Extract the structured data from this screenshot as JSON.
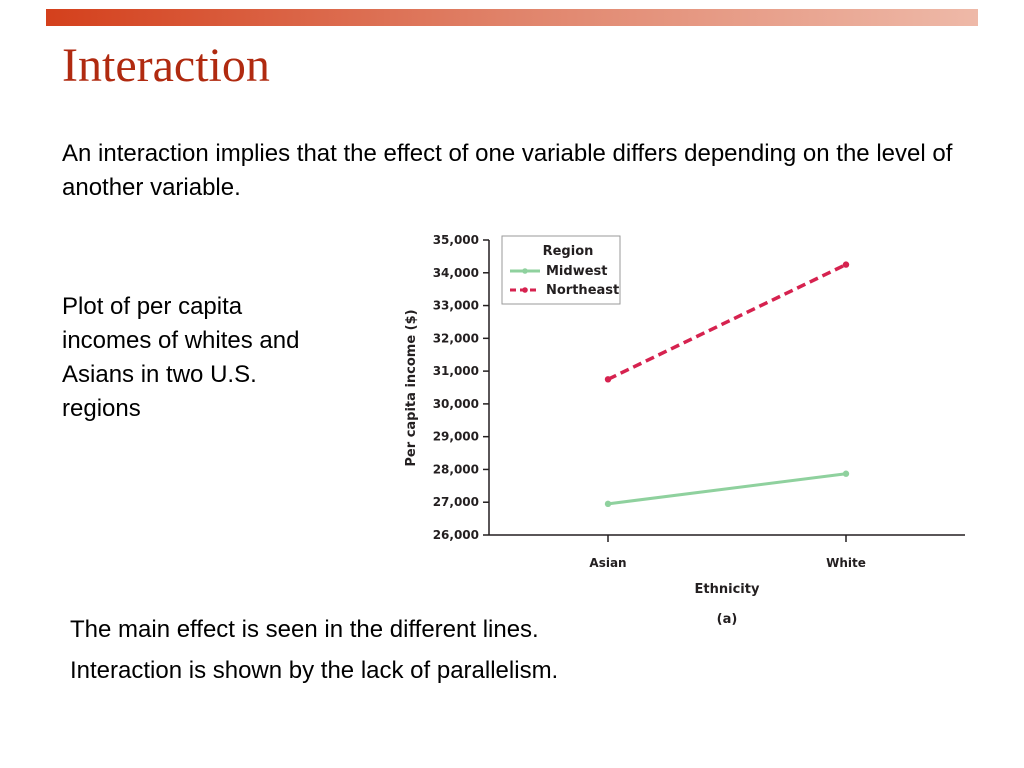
{
  "slide": {
    "title": "Interaction",
    "intro": "An interaction implies that the effect of one variable differs depending on the level of another variable.",
    "caption": "Plot of per capita incomes of whites and Asians in two U.S. regions",
    "notes": [
      "The main effect is seen in the different lines.",
      "Interaction is shown by the lack of parallelism."
    ]
  },
  "colors": {
    "accent_bar": "#d4401c",
    "title": "#b02a10"
  },
  "chart_data": {
    "type": "line",
    "categories": [
      "Asian",
      "White"
    ],
    "series": [
      {
        "name": "Midwest",
        "values": [
          26950,
          27870
        ],
        "color": "#8fd19e",
        "dash": "solid"
      },
      {
        "name": "Northeast",
        "values": [
          30750,
          34250
        ],
        "color": "#d6224f",
        "dash": "dashed"
      }
    ],
    "yticks": [
      26000,
      27000,
      28000,
      29000,
      30000,
      31000,
      32000,
      33000,
      34000,
      35000
    ],
    "ytick_labels": [
      "26,000",
      "27,000",
      "28,000",
      "29,000",
      "30,000",
      "31,000",
      "32,000",
      "33,000",
      "34,000",
      "35,000"
    ],
    "ylim": [
      26000,
      35000
    ],
    "ylabel": "Per capita income ($)",
    "xlabel": "Ethnicity",
    "panel_label": "(a)",
    "legend": {
      "title": "Region",
      "placement": "top-center"
    },
    "grid": false
  }
}
